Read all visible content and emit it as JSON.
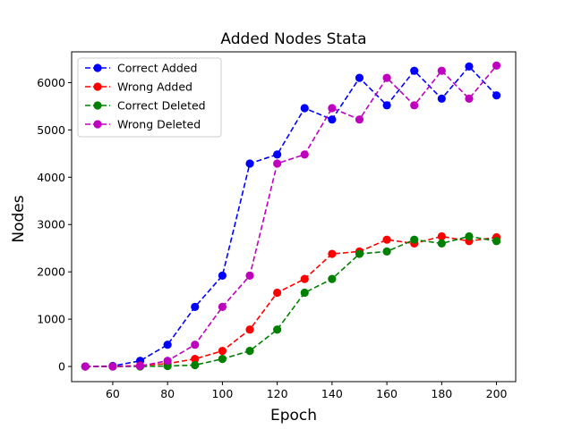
{
  "chart_data": {
    "type": "line",
    "title": "Added Nodes Stata",
    "xlabel": "Epoch",
    "ylabel": "Nodes",
    "x": [
      50,
      60,
      70,
      80,
      90,
      100,
      110,
      120,
      130,
      140,
      150,
      160,
      170,
      180,
      190,
      200
    ],
    "xlim": [
      45,
      207
    ],
    "ylim": [
      -320,
      6650
    ],
    "xticks": [
      60,
      80,
      100,
      120,
      140,
      160,
      180,
      200
    ],
    "yticks": [
      0,
      1000,
      2000,
      3000,
      4000,
      5000,
      6000
    ],
    "grid": false,
    "legend_position": "top-left",
    "series": [
      {
        "name": "Correct Added",
        "color": "#0000ff",
        "values": [
          0,
          10,
          120,
          460,
          1260,
          1920,
          4290,
          4480,
          5460,
          5220,
          6100,
          5520,
          6250,
          5660,
          6340,
          5730
        ]
      },
      {
        "name": "Wrong Added",
        "color": "#ff0000",
        "values": [
          0,
          0,
          20,
          60,
          160,
          330,
          780,
          1560,
          1850,
          2380,
          2430,
          2680,
          2600,
          2750,
          2650,
          2730
        ]
      },
      {
        "name": "Correct Deleted",
        "color": "#008000",
        "values": [
          0,
          0,
          0,
          10,
          30,
          160,
          330,
          780,
          1560,
          1850,
          2380,
          2430,
          2680,
          2600,
          2750,
          2650
        ]
      },
      {
        "name": "Wrong Deleted",
        "color": "#bf00bf",
        "values": [
          0,
          0,
          10,
          120,
          460,
          1260,
          1920,
          4290,
          4480,
          5460,
          5220,
          6100,
          5520,
          6250,
          5660,
          6360
        ]
      }
    ]
  }
}
